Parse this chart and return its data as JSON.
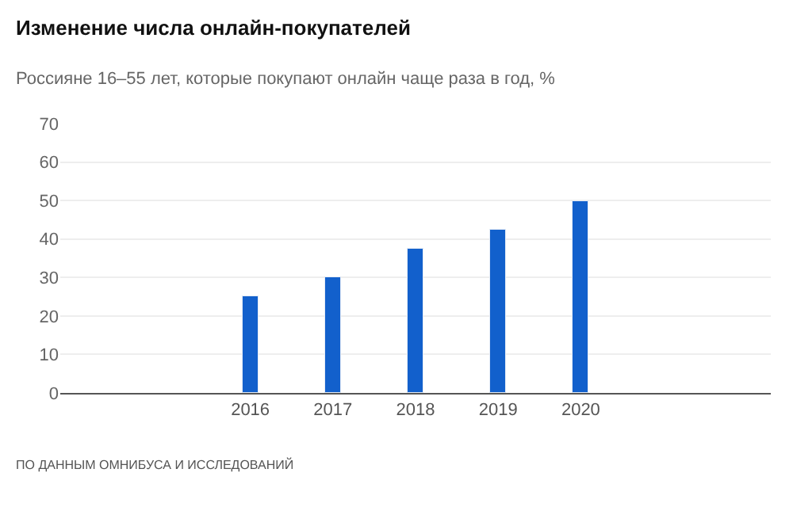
{
  "chart_data": {
    "type": "bar",
    "title": "Изменение числа онлайн-покупателей",
    "subtitle": "Россияне 16–55 лет, которые покупают онлайн чаще раза в год, %",
    "categories": [
      null,
      null,
      "2016",
      "2017",
      "2018",
      "2019",
      "2020",
      null,
      null
    ],
    "values": [
      null,
      null,
      25,
      30,
      37.5,
      42.5,
      50,
      null,
      null
    ],
    "color": "#1260cc",
    "ylim": [
      0,
      70
    ],
    "yticks": [
      0,
      10,
      20,
      30,
      40,
      50,
      60,
      70
    ],
    "grid": "y",
    "annotations": [
      "ПО ДАННЫМ ОМНИБУСА И ИССЛЕДОВАНИЙ"
    ]
  }
}
